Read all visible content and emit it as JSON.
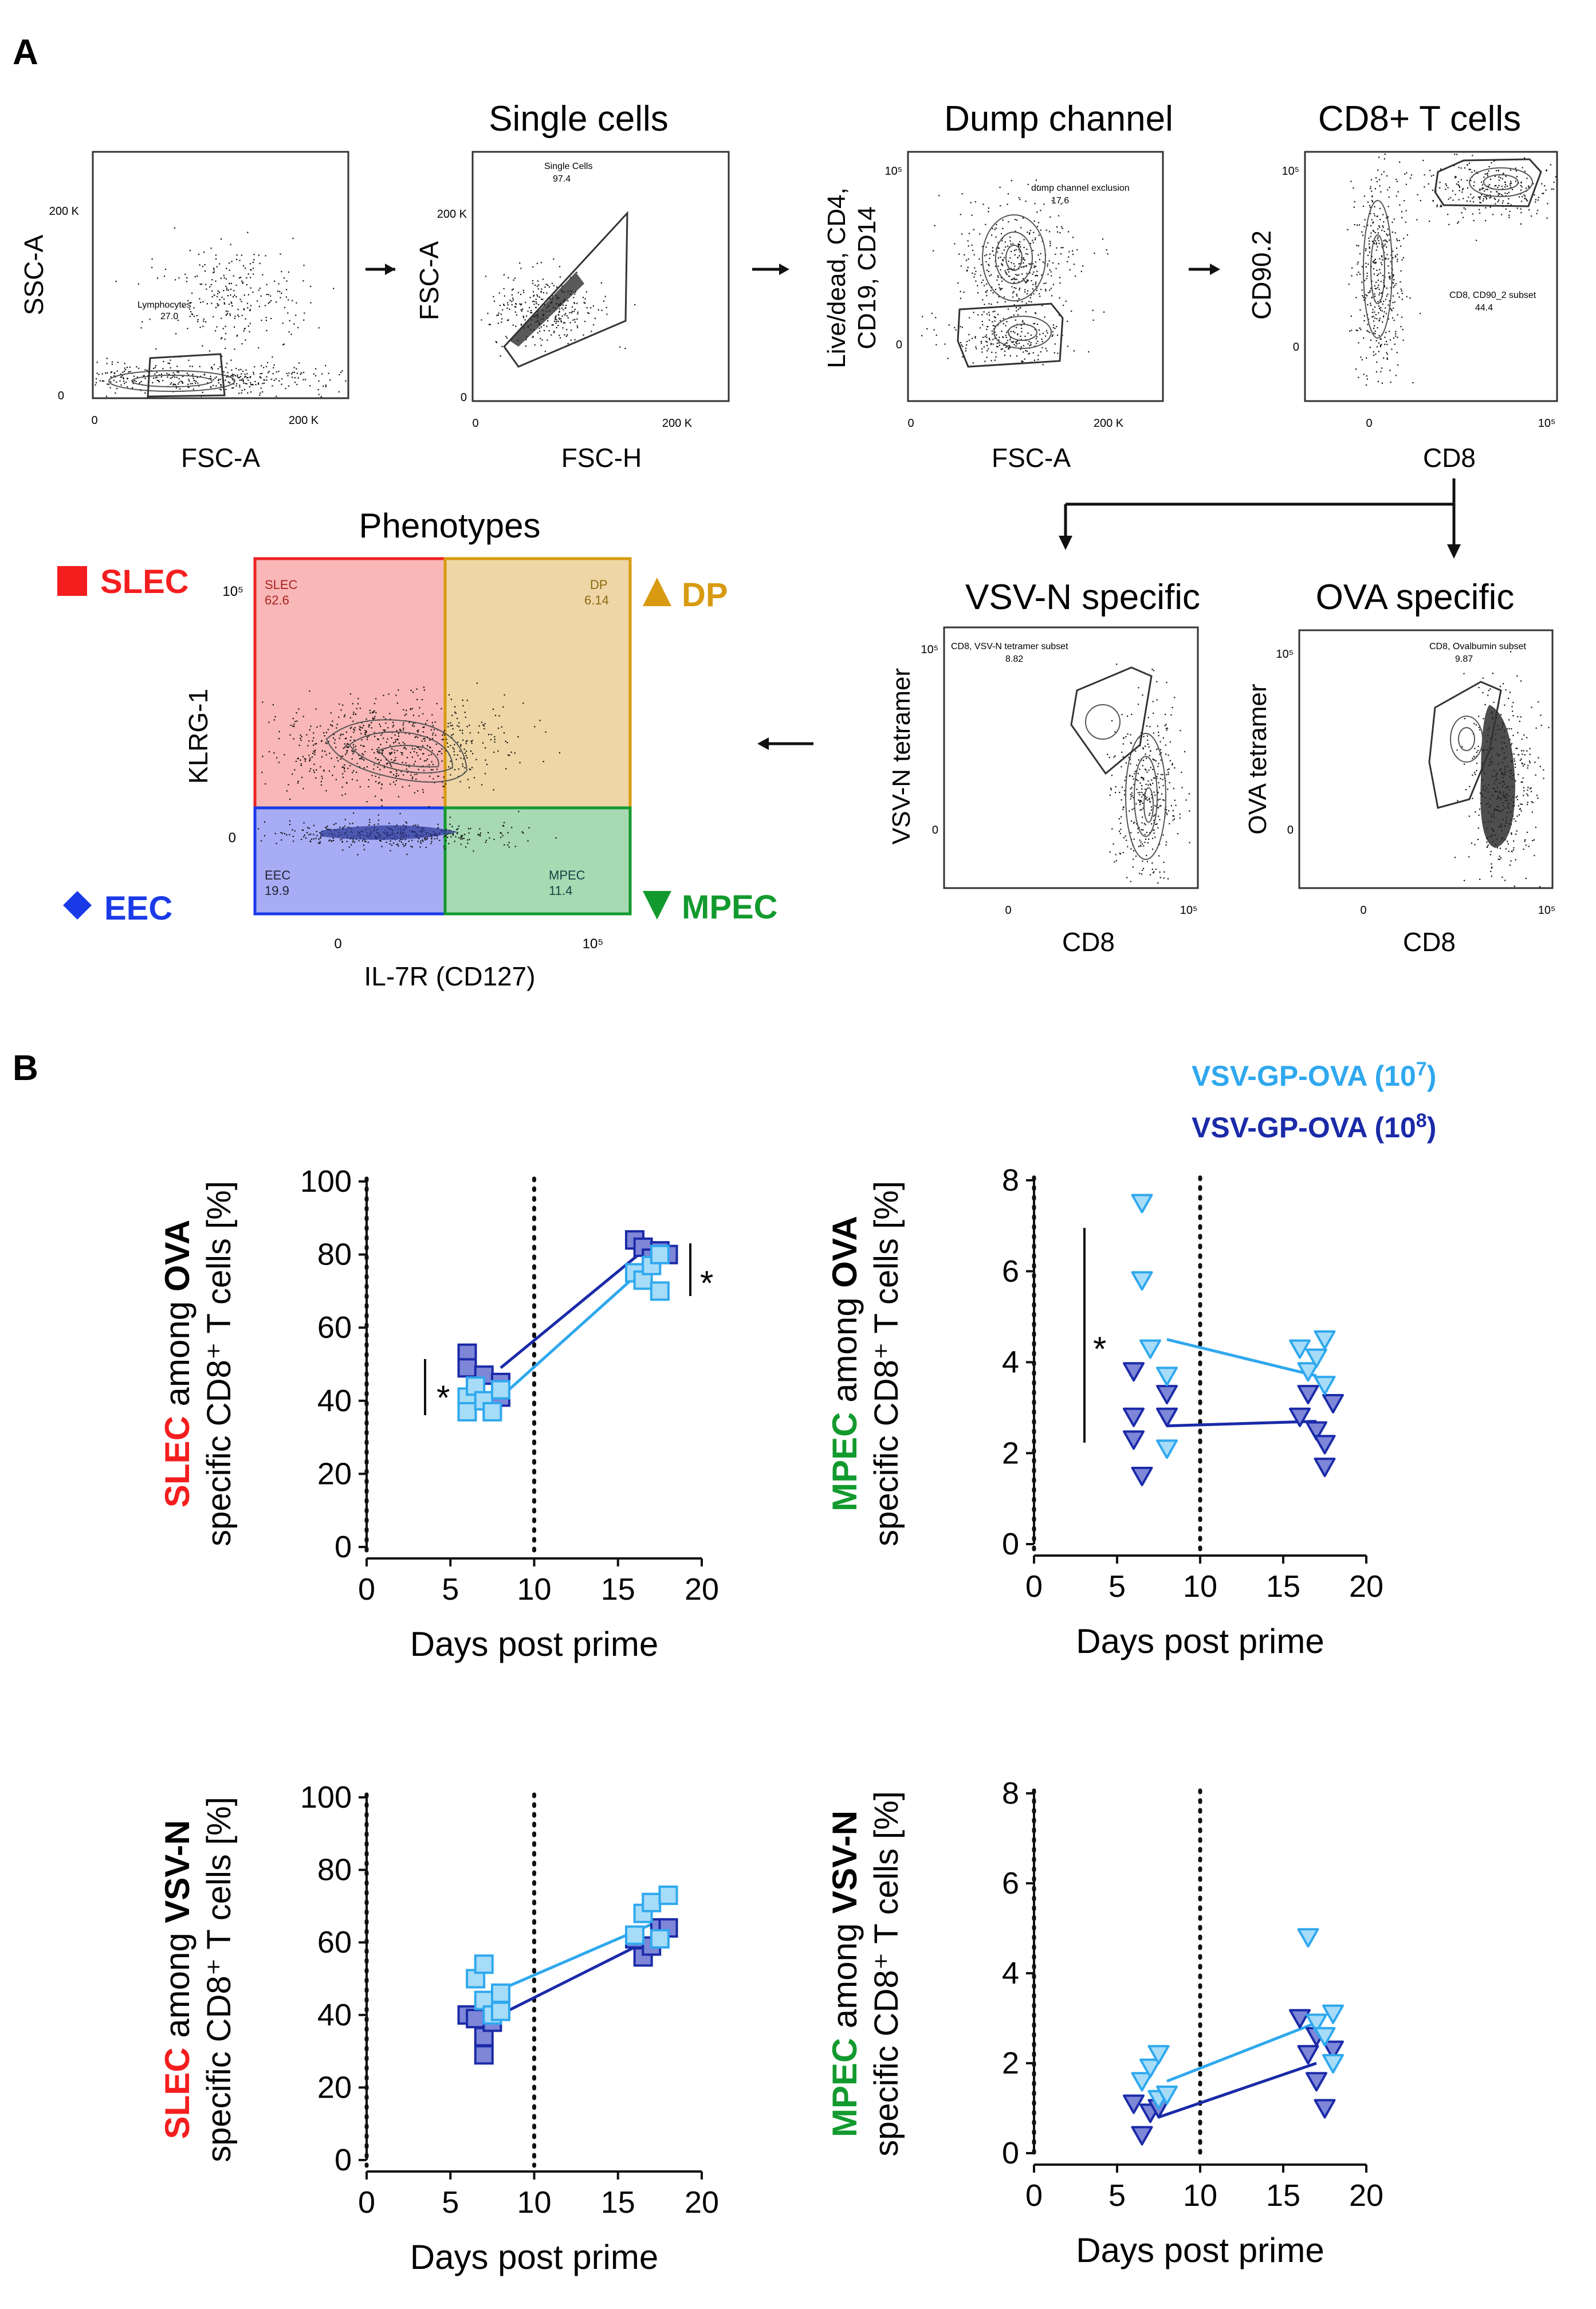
{
  "panel_a": {
    "label": "A",
    "plots": [
      {
        "title": "",
        "xlabel": "FSC-A",
        "ylabel": "SSC-A",
        "yticks": [
          "200 K",
          "0"
        ],
        "xticks": [
          "0",
          "200 K"
        ],
        "gate_name": "Lymphocytes",
        "gate_value": "27.0"
      },
      {
        "title": "Single cells",
        "xlabel": "FSC-H",
        "ylabel": "FSC-A",
        "yticks": [
          "200 K",
          "0"
        ],
        "xticks": [
          "0",
          "200 K"
        ],
        "gate_name": "Single Cells",
        "gate_value": "97.4"
      },
      {
        "title": "Dump channel",
        "xlabel": "FSC-A",
        "ylabel_lines": [
          "Live/dead, CD4,",
          "CD19, CD14"
        ],
        "yticks": [
          "10⁵",
          "0"
        ],
        "xticks": [
          "0",
          "200 K"
        ],
        "gate_name": "dump channel exclusion",
        "gate_value": "17.6"
      },
      {
        "title": "CD8+ T cells",
        "xlabel": "CD8",
        "ylabel": "CD90.2",
        "yticks": [
          "10⁵",
          "0"
        ],
        "xticks": [
          "0",
          "10⁵"
        ],
        "gate_name": "CD8, CD90_2 subset",
        "gate_value": "44.4"
      }
    ],
    "tetramer_plots": [
      {
        "title": "VSV-N specific",
        "xlabel": "CD8",
        "ylabel": "VSV-N tetramer",
        "yticks": [
          "10⁵",
          "0"
        ],
        "xticks": [
          "0",
          "10⁵"
        ],
        "gate_name": "CD8, VSV-N tetramer subset",
        "gate_value": "8.82"
      },
      {
        "title": "OVA specific",
        "xlabel": "CD8",
        "ylabel": "OVA tetramer",
        "yticks": [
          "10⁵",
          "0"
        ],
        "xticks": [
          "0",
          "10⁵"
        ],
        "gate_name": "CD8, Ovalbumin subset",
        "gate_value": "9.87"
      }
    ],
    "phenotypes": {
      "title": "Phenotypes",
      "xlabel": "IL-7R (CD127)",
      "ylabel": "KLRG-1",
      "yticks": [
        "10⁵",
        "0"
      ],
      "xticks": [
        "0",
        "10⁵"
      ],
      "quadrants": [
        {
          "name": "SLEC",
          "value": "62.6",
          "legend": "SLEC",
          "color": "#f41e1e"
        },
        {
          "name": "DP",
          "value": "6.14",
          "legend": "DP",
          "color": "#d89a10"
        },
        {
          "name": "EEC",
          "value": "19.9",
          "legend": "EEC",
          "color": "#1a3ae8"
        },
        {
          "name": "MPEC",
          "value": "11.4",
          "legend": "MPEC",
          "color": "#139a2e"
        }
      ]
    }
  },
  "panel_b": {
    "label": "B",
    "legend": [
      {
        "text": "VSV-GP-OVA (10",
        "sup": "7",
        "close": ")",
        "color": "#2fa8ee"
      },
      {
        "text": "VSV-GP-OVA (10",
        "sup": "8",
        "close": ")",
        "color": "#1a2aa8"
      }
    ],
    "significance": "*"
  },
  "chart_data": [
    {
      "type": "scatter",
      "title": "",
      "ylabel_colored": "SLEC",
      "ylabel_mid": " among ",
      "ylabel_bold": "OVA",
      "ylabel_line2": "specific CD8⁺ T cells [%]",
      "xlabel": "Days post prime",
      "xlim": [
        0,
        20
      ],
      "ylim": [
        0,
        100
      ],
      "xticks": [
        0,
        5,
        10,
        15,
        20
      ],
      "yticks": [
        0,
        20,
        40,
        60,
        80,
        100
      ],
      "vlines": [
        0,
        10
      ],
      "marker": "square",
      "series": [
        {
          "name": "VSV-GP-OVA (10^8)",
          "points": [
            [
              6,
              53
            ],
            [
              6,
              49
            ],
            [
              6.5,
              44
            ],
            [
              7,
              47
            ],
            [
              7.5,
              38
            ],
            [
              8,
              45
            ],
            [
              8,
              41
            ],
            [
              16,
              84
            ],
            [
              16.5,
              82
            ],
            [
              17,
              79
            ],
            [
              17.5,
              81
            ],
            [
              18,
              80
            ]
          ],
          "mean_line": [
            [
              8,
              49
            ],
            [
              16.5,
              81
            ]
          ]
        },
        {
          "name": "VSV-GP-OVA (10^7)",
          "points": [
            [
              6,
              41
            ],
            [
              6,
              37
            ],
            [
              6.5,
              44
            ],
            [
              7,
              40
            ],
            [
              7.5,
              37
            ],
            [
              8,
              43
            ],
            [
              16,
              75
            ],
            [
              16.5,
              73
            ],
            [
              17,
              77
            ],
            [
              17.5,
              80
            ],
            [
              17.5,
              70
            ]
          ],
          "mean_line": [
            [
              8,
              41
            ],
            [
              16.5,
              76
            ]
          ]
        }
      ]
    },
    {
      "type": "scatter",
      "title": "",
      "ylabel_colored": "MPEC",
      "ylabel_mid": " among ",
      "ylabel_bold": "OVA",
      "ylabel_line2": "specific CD8⁺ T cells [%]",
      "xlabel": "Days post prime",
      "xlim": [
        0,
        20
      ],
      "ylim": [
        0,
        8
      ],
      "xticks": [
        0,
        5,
        10,
        15,
        20
      ],
      "yticks": [
        0,
        2,
        4,
        6,
        8
      ],
      "vlines": [
        0,
        10
      ],
      "marker": "triangle-down",
      "series": [
        {
          "name": "VSV-GP-OVA (10^8)",
          "points": [
            [
              6,
              3.8
            ],
            [
              6,
              2.8
            ],
            [
              6,
              2.3
            ],
            [
              6.5,
              1.5
            ],
            [
              8,
              3.3
            ],
            [
              8,
              2.8
            ],
            [
              16,
              2.8
            ],
            [
              16.5,
              3.3
            ],
            [
              17,
              2.5
            ],
            [
              17.5,
              2.2
            ],
            [
              17.5,
              1.7
            ],
            [
              18,
              3.1
            ]
          ],
          "mean_line": [
            [
              8,
              2.6
            ],
            [
              17,
              2.7
            ]
          ]
        },
        {
          "name": "VSV-GP-OVA (10^7)",
          "points": [
            [
              6.5,
              7.5
            ],
            [
              6.5,
              5.8
            ],
            [
              7,
              4.3
            ],
            [
              8,
              3.7
            ],
            [
              8,
              2.1
            ],
            [
              16,
              4.3
            ],
            [
              16.5,
              3.8
            ],
            [
              17,
              4.1
            ],
            [
              17.5,
              4.5
            ],
            [
              17.5,
              3.5
            ]
          ],
          "mean_line": [
            [
              8,
              4.5
            ],
            [
              17,
              3.7
            ]
          ]
        }
      ]
    },
    {
      "type": "scatter",
      "title": "",
      "ylabel_colored": "SLEC",
      "ylabel_mid": " among ",
      "ylabel_bold": "VSV-N",
      "ylabel_line2": "specific CD8⁺ T cells [%]",
      "xlabel": "Days post prime",
      "xlim": [
        0,
        20
      ],
      "ylim": [
        0,
        100
      ],
      "xticks": [
        0,
        5,
        10,
        15,
        20
      ],
      "yticks": [
        0,
        20,
        40,
        60,
        80,
        100
      ],
      "vlines": [
        0,
        10
      ],
      "marker": "square",
      "series": [
        {
          "name": "VSV-GP-OVA (10^8)",
          "points": [
            [
              6,
              40
            ],
            [
              6.5,
              39
            ],
            [
              7,
              34
            ],
            [
              7,
              29
            ],
            [
              7.5,
              38
            ],
            [
              16,
              61
            ],
            [
              16.5,
              56
            ],
            [
              17,
              59
            ],
            [
              17.5,
              64
            ],
            [
              18,
              64
            ]
          ],
          "mean_line": [
            [
              7.5,
              39
            ],
            [
              17,
              61
            ]
          ]
        },
        {
          "name": "VSV-GP-OVA (10^7)",
          "points": [
            [
              6.5,
              50
            ],
            [
              7,
              54
            ],
            [
              7,
              44
            ],
            [
              7.5,
              40
            ],
            [
              8,
              46
            ],
            [
              8,
              41
            ],
            [
              16,
              62
            ],
            [
              16.5,
              68
            ],
            [
              17,
              71
            ],
            [
              17.5,
              61
            ],
            [
              18,
              73
            ]
          ],
          "mean_line": [
            [
              7.5,
              46
            ],
            [
              17,
              65
            ]
          ]
        }
      ]
    },
    {
      "type": "scatter",
      "title": "",
      "ylabel_colored": "MPEC",
      "ylabel_mid": " among ",
      "ylabel_bold": "VSV-N",
      "ylabel_line2": "specific CD8⁺ T cells [%]",
      "xlabel": "Days post prime",
      "xlim": [
        0,
        20
      ],
      "ylim": [
        0,
        8
      ],
      "xticks": [
        0,
        5,
        10,
        15,
        20
      ],
      "yticks": [
        0,
        2,
        4,
        6,
        8
      ],
      "vlines": [
        0,
        10
      ],
      "marker": "triangle-down",
      "series": [
        {
          "name": "VSV-GP-OVA (10^8)",
          "points": [
            [
              6,
              1.1
            ],
            [
              6.5,
              0.4
            ],
            [
              7,
              0.9
            ],
            [
              7.5,
              1.0
            ],
            [
              16,
              3.0
            ],
            [
              16.5,
              2.2
            ],
            [
              17,
              2.6
            ],
            [
              17,
              1.6
            ],
            [
              17.5,
              1.0
            ],
            [
              18,
              2.3
            ]
          ],
          "mean_line": [
            [
              7.5,
              0.8
            ],
            [
              17,
              2.0
            ]
          ]
        },
        {
          "name": "VSV-GP-OVA (10^7)",
          "points": [
            [
              6.5,
              1.6
            ],
            [
              7,
              1.9
            ],
            [
              7.5,
              2.2
            ],
            [
              7.5,
              1.2
            ],
            [
              8,
              1.3
            ],
            [
              16.5,
              4.8
            ],
            [
              17,
              2.9
            ],
            [
              17.5,
              2.6
            ],
            [
              18,
              3.1
            ],
            [
              18,
              2.0
            ]
          ],
          "mean_line": [
            [
              8,
              1.6
            ],
            [
              17,
              2.9
            ]
          ]
        }
      ]
    }
  ]
}
